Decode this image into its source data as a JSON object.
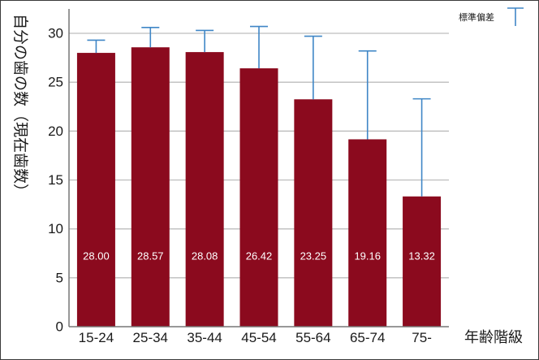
{
  "chart_data": {
    "type": "bar",
    "title": "",
    "ylabel": "自分の歯の数（現在歯数）",
    "xlabel": "年齢階級",
    "categories": [
      "15-24",
      "25-34",
      "35-44",
      "45-54",
      "55-64",
      "65-74",
      "75-"
    ],
    "values": [
      28.0,
      28.57,
      28.08,
      26.42,
      23.25,
      19.16,
      13.32
    ],
    "data_labels": [
      "28.00",
      "28.57",
      "28.08",
      "26.42",
      "23.25",
      "19.16",
      "13.32"
    ],
    "error_upper": [
      29.3,
      30.6,
      30.3,
      30.7,
      29.7,
      28.2,
      23.3
    ],
    "ylim": [
      0,
      30
    ],
    "yticks": [
      0,
      5,
      10,
      15,
      20,
      25,
      30
    ],
    "grid": true,
    "legend": {
      "position": "top-right",
      "label": "標準偏差"
    },
    "colors": {
      "bar": "#8b0a1e",
      "error": "#3f86c6",
      "grid": "#bdbdbd"
    }
  }
}
